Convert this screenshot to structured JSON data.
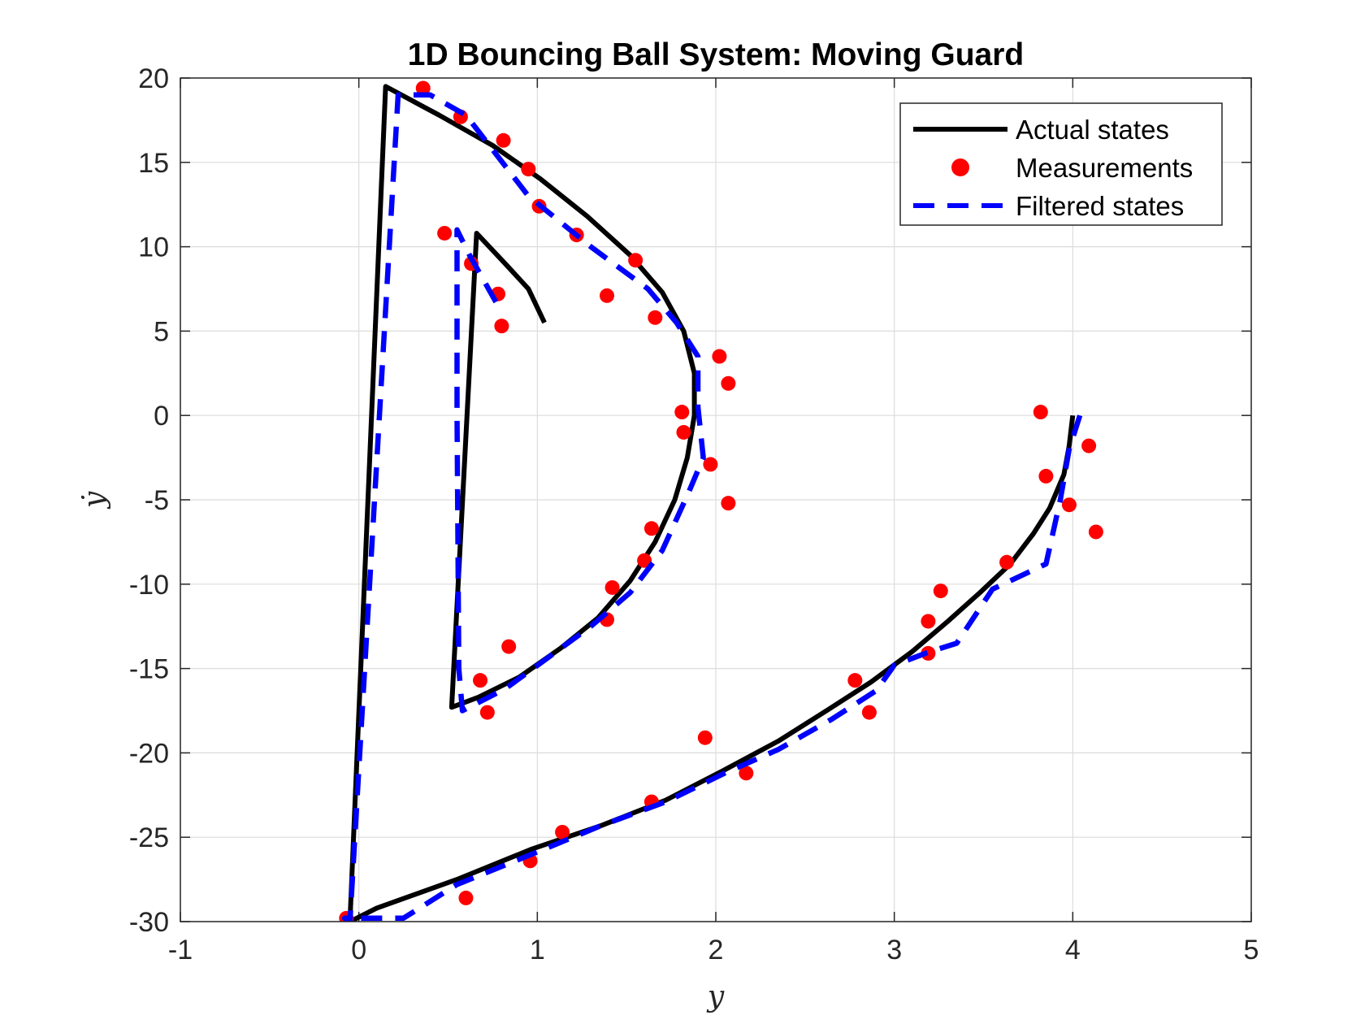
{
  "chart_data": {
    "type": "line",
    "title": "1D Bouncing Ball System: Moving Guard",
    "xlabel": "y",
    "ylabel": "ẏ",
    "xlim": [
      -1,
      5
    ],
    "ylim": [
      -30,
      20
    ],
    "xticks": [
      -1,
      0,
      1,
      2,
      3,
      4,
      5
    ],
    "yticks": [
      -30,
      -25,
      -20,
      -15,
      -10,
      -5,
      0,
      5,
      10,
      15,
      20
    ],
    "xtick_labels": [
      "-1",
      "0",
      "1",
      "2",
      "3",
      "4",
      "5"
    ],
    "ytick_labels": [
      "-30",
      "-25",
      "-20",
      "-15",
      "-10",
      "-5",
      "0",
      "5",
      "10",
      "15",
      "20"
    ],
    "grid": true,
    "legend_position": "top-right",
    "series": [
      {
        "name": "Actual states",
        "style": "solid",
        "color": "#000000",
        "x": [
          4.0,
          3.98,
          3.95,
          3.87,
          3.78,
          3.65,
          3.48,
          3.3,
          3.1,
          2.87,
          2.62,
          2.35,
          2.05,
          1.72,
          1.36,
          0.97,
          0.55,
          0.1,
          -0.05,
          0.15,
          0.45,
          0.75,
          1.02,
          1.28,
          1.52,
          1.7,
          1.82,
          1.88,
          1.88,
          1.84,
          1.77,
          1.66,
          1.52,
          1.34,
          1.13,
          0.9,
          0.67,
          0.52,
          0.66,
          0.82,
          0.95,
          1.04
        ],
        "y": [
          0.0,
          -1.8,
          -3.5,
          -5.5,
          -7.0,
          -8.8,
          -10.5,
          -12.2,
          -14.0,
          -15.8,
          -17.5,
          -19.3,
          -21.0,
          -22.8,
          -24.3,
          -25.7,
          -27.5,
          -29.2,
          -30.0,
          19.5,
          17.8,
          16.0,
          14.0,
          11.8,
          9.5,
          7.3,
          5.0,
          2.5,
          0.0,
          -2.5,
          -5.0,
          -7.5,
          -9.8,
          -12.0,
          -13.8,
          -15.5,
          -16.7,
          -17.3,
          10.8,
          9.0,
          7.5,
          5.5
        ]
      },
      {
        "name": "Measurements",
        "style": "markers",
        "color": "#ff0000",
        "x": [
          3.82,
          4.09,
          3.85,
          3.98,
          4.13,
          3.63,
          3.26,
          3.19,
          3.19,
          2.78,
          2.86,
          1.94,
          2.17,
          1.64,
          1.14,
          0.96,
          0.6,
          -0.07,
          0.36,
          0.57,
          0.81,
          0.95,
          1.01,
          1.22,
          1.55,
          1.66,
          2.02,
          2.07,
          1.81,
          1.82,
          1.97,
          2.07,
          1.64,
          1.6,
          1.42,
          1.39,
          0.84,
          0.68,
          0.72,
          0.48,
          0.63,
          0.78,
          0.8,
          1.39
        ],
        "y": [
          0.2,
          -1.8,
          -3.6,
          -5.3,
          -6.9,
          -8.7,
          -10.4,
          -12.2,
          -14.1,
          -15.7,
          -17.6,
          -19.1,
          -21.2,
          -22.9,
          -24.7,
          -26.4,
          -28.6,
          -29.8,
          19.4,
          17.7,
          16.3,
          14.6,
          12.4,
          10.7,
          9.2,
          5.8,
          3.5,
          1.9,
          0.2,
          -1.0,
          -2.9,
          -5.2,
          -6.7,
          -8.6,
          -10.2,
          -12.1,
          -13.7,
          -15.7,
          -17.6,
          10.8,
          9.0,
          7.2,
          5.3,
          7.1
        ]
      },
      {
        "name": "Filtered states",
        "style": "dashed",
        "color": "#0000ff",
        "x": [
          4.04,
          3.98,
          3.93,
          3.85,
          3.55,
          3.35,
          3.2,
          3.0,
          2.9,
          2.65,
          2.35,
          2.05,
          1.72,
          1.36,
          0.97,
          0.55,
          0.25,
          -0.08,
          -0.05,
          0.22,
          0.4,
          0.6,
          0.95,
          1.3,
          1.62,
          1.78,
          1.9,
          1.9,
          1.93,
          1.85,
          1.7,
          1.52,
          1.3,
          1.08,
          0.82,
          0.58,
          0.56,
          0.55,
          0.55,
          0.62,
          0.78
        ],
        "y": [
          0.0,
          -2.0,
          -5.0,
          -8.8,
          -10.3,
          -13.5,
          -14.0,
          -14.8,
          -16.3,
          -18.0,
          -19.8,
          -21.2,
          -22.9,
          -24.3,
          -26.0,
          -27.8,
          -29.8,
          -29.8,
          -30.0,
          19.0,
          19.0,
          17.8,
          13.0,
          10.0,
          7.5,
          5.5,
          3.5,
          0.5,
          -2.5,
          -4.5,
          -8.0,
          -10.5,
          -12.5,
          -14.2,
          -16.2,
          -17.5,
          -15.0,
          0.0,
          11.0,
          9.5,
          6.5
        ]
      }
    ]
  }
}
